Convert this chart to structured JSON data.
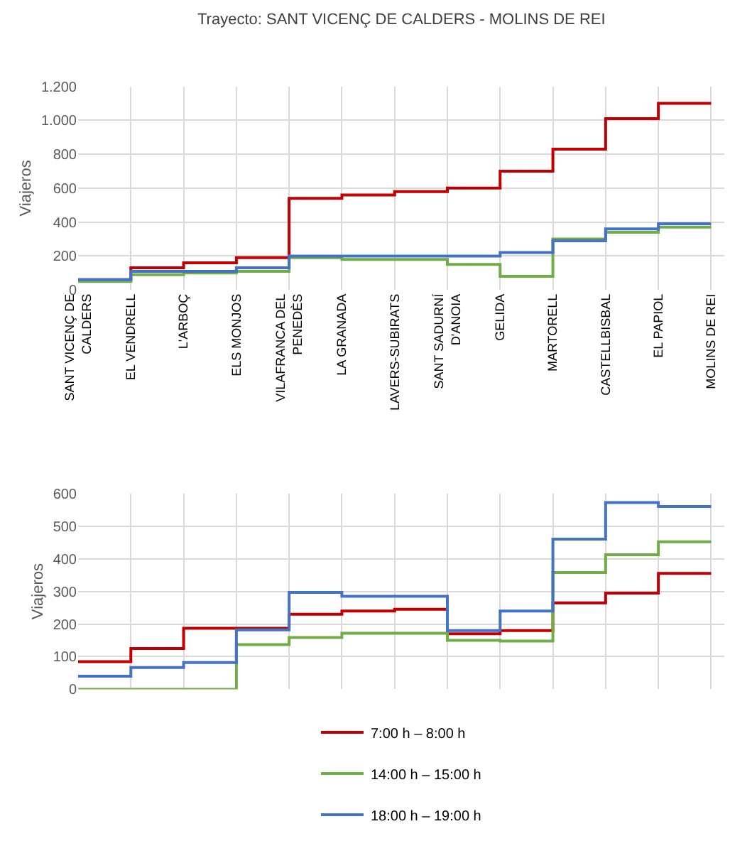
{
  "chart_data": [
    {
      "type": "step",
      "title": "Trayecto: SANT VICENÇ DE CALDERS - MOLINS DE REI",
      "ylabel": "Viajeros",
      "categories": [
        "SANT VICENÇ DE CALDERS",
        "EL VENDRELL",
        "L'ARBOÇ",
        "ELS MONJOS",
        "VILAFRANCA DEL PENEDÈS",
        "LA GRANADA",
        "LAVERS-SUBIRATS",
        "SANT SADURNÍ D'ANOIA",
        "GELIDA",
        "MARTORELL",
        "CASTELLBISBAL",
        "EL PAPIOL",
        "MOLINS DE REI"
      ],
      "series": [
        {
          "color": "#c00000",
          "values": [
            60,
            130,
            160,
            190,
            540,
            560,
            580,
            600,
            700,
            830,
            1010,
            1100,
            1100
          ]
        },
        {
          "color": "#70ad47",
          "values": [
            50,
            90,
            100,
            110,
            190,
            180,
            180,
            150,
            80,
            300,
            340,
            370,
            370
          ]
        },
        {
          "color": "#4472c4",
          "values": [
            60,
            110,
            110,
            130,
            200,
            200,
            200,
            200,
            220,
            290,
            360,
            390,
            390
          ]
        }
      ],
      "ylim": [
        0,
        1200
      ],
      "yticks": [
        0,
        200,
        400,
        600,
        800,
        {
          "value": 1000,
          "label": "1.000"
        },
        {
          "value": 1200,
          "label": "1.200"
        }
      ],
      "grid": true,
      "legend": false
    },
    {
      "type": "step",
      "ylabel": "Viajeros",
      "categories": [
        null,
        null,
        null,
        null,
        null,
        null,
        null,
        null,
        null,
        null,
        null,
        null,
        null
      ],
      "series": [
        {
          "name": "7:00 h – 8:00 h",
          "color": "#c00000",
          "values": [
            85,
            125,
            187,
            187,
            230,
            240,
            245,
            170,
            180,
            265,
            295,
            355,
            355
          ]
        },
        {
          "name": "14:00 h – 15:00 h",
          "color": "#70ad47",
          "values": [
            0,
            0,
            0,
            137,
            159,
            172,
            172,
            150,
            148,
            358,
            412,
            452,
            452
          ]
        },
        {
          "name": "18:00 h – 19:00 h",
          "color": "#4472c4",
          "values": [
            40,
            67,
            82,
            182,
            297,
            285,
            285,
            180,
            240,
            460,
            572,
            560,
            560
          ]
        }
      ],
      "ylim": [
        0,
        600
      ],
      "yticks": [
        0,
        100,
        200,
        300,
        400,
        500,
        600
      ],
      "grid": true,
      "legend": "bottom",
      "tick_labels": "y"
    }
  ]
}
